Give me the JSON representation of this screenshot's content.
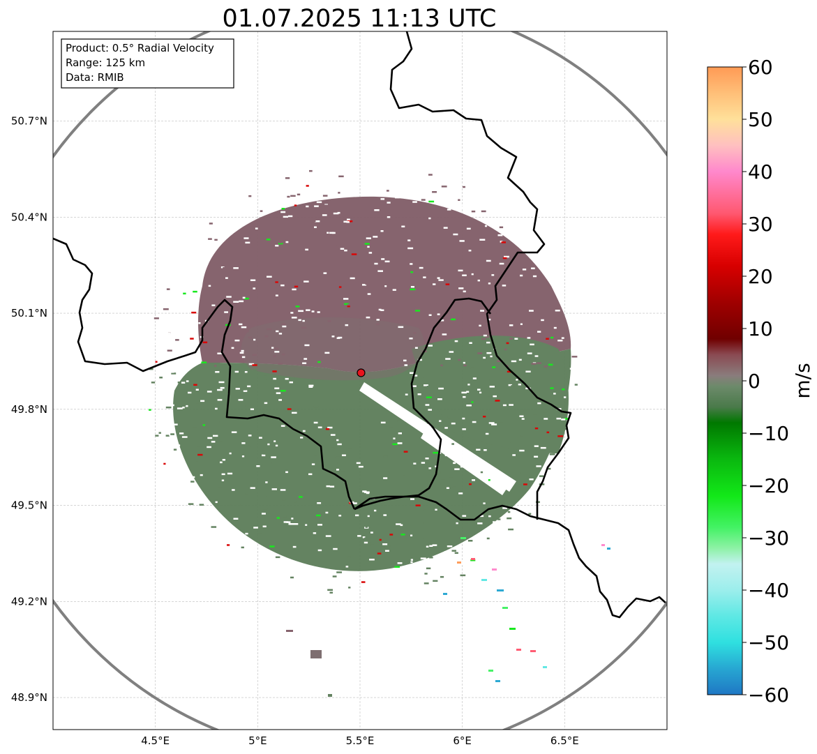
{
  "title": "01.07.2025 11:13 UTC",
  "info_box": {
    "lines": [
      "Product: 0.5° Radial Velocity",
      "Range: 125 km",
      "Data: RMIB"
    ]
  },
  "map": {
    "lon_range": [
      4.0,
      7.0
    ],
    "lat_range": [
      48.8,
      50.98
    ],
    "lon_ticks": [
      {
        "value": 4.5,
        "label": "4.5°E"
      },
      {
        "value": 5.0,
        "label": "5°E"
      },
      {
        "value": 5.5,
        "label": "5.5°E"
      },
      {
        "value": 6.0,
        "label": "6°E"
      },
      {
        "value": 6.5,
        "label": "6.5°E"
      }
    ],
    "lat_ticks": [
      {
        "value": 50.7,
        "label": "50.7°N"
      },
      {
        "value": 50.4,
        "label": "50.4°N"
      },
      {
        "value": 50.1,
        "label": "50.1°N"
      },
      {
        "value": 49.8,
        "label": "49.8°N"
      },
      {
        "value": 49.5,
        "label": "49.5°N"
      },
      {
        "value": 49.2,
        "label": "49.2°N"
      },
      {
        "value": 48.9,
        "label": "48.9°N"
      }
    ],
    "radar_site": {
      "lon": 5.505,
      "lat": 49.914,
      "color": "#e8141e"
    },
    "range_ring_km": 125,
    "ring_color": "#808080",
    "grid": true
  },
  "colorbar": {
    "label": "m/s",
    "vmin": -60,
    "vmax": 60,
    "ticks": [
      {
        "value": 60,
        "label": "60"
      },
      {
        "value": 50,
        "label": "50"
      },
      {
        "value": 40,
        "label": "40"
      },
      {
        "value": 30,
        "label": "30"
      },
      {
        "value": 20,
        "label": "20"
      },
      {
        "value": 10,
        "label": "10"
      },
      {
        "value": 0,
        "label": "0"
      },
      {
        "value": -10,
        "label": "−10"
      },
      {
        "value": -20,
        "label": "−20"
      },
      {
        "value": -30,
        "label": "−30"
      },
      {
        "value": -40,
        "label": "−40"
      },
      {
        "value": -50,
        "label": "−50"
      },
      {
        "value": -60,
        "label": "−60"
      }
    ],
    "stops": [
      {
        "v": -60,
        "color": "#1f77c4"
      },
      {
        "v": -55,
        "color": "#27a7d2"
      },
      {
        "v": -50,
        "color": "#2fe0e0"
      },
      {
        "v": -45,
        "color": "#5ee8e4"
      },
      {
        "v": -40,
        "color": "#9ceeec"
      },
      {
        "v": -35,
        "color": "#c2f2f0"
      },
      {
        "v": -32,
        "color": "#8ef2a6"
      },
      {
        "v": -28,
        "color": "#43f264"
      },
      {
        "v": -22,
        "color": "#12e818"
      },
      {
        "v": -15,
        "color": "#0ab80f"
      },
      {
        "v": -8,
        "color": "#007800"
      },
      {
        "v": -5,
        "color": "#4a7a4a"
      },
      {
        "v": -1,
        "color": "#6d8a6b"
      },
      {
        "v": 1,
        "color": "#8a7c7c"
      },
      {
        "v": 5,
        "color": "#8a4a52"
      },
      {
        "v": 8,
        "color": "#700000"
      },
      {
        "v": 15,
        "color": "#a00000"
      },
      {
        "v": 22,
        "color": "#d80000"
      },
      {
        "v": 28,
        "color": "#ff1a1a"
      },
      {
        "v": 32,
        "color": "#ff5870"
      },
      {
        "v": 40,
        "color": "#ff88cc"
      },
      {
        "v": 45,
        "color": "#ffc0c0"
      },
      {
        "v": 50,
        "color": "#ffe09a"
      },
      {
        "v": 55,
        "color": "#ffbf78"
      },
      {
        "v": 60,
        "color": "#ff9a55"
      }
    ]
  },
  "colors": {
    "approach": "#5f7f5c",
    "recede": "#83606a",
    "border": "#000000"
  }
}
